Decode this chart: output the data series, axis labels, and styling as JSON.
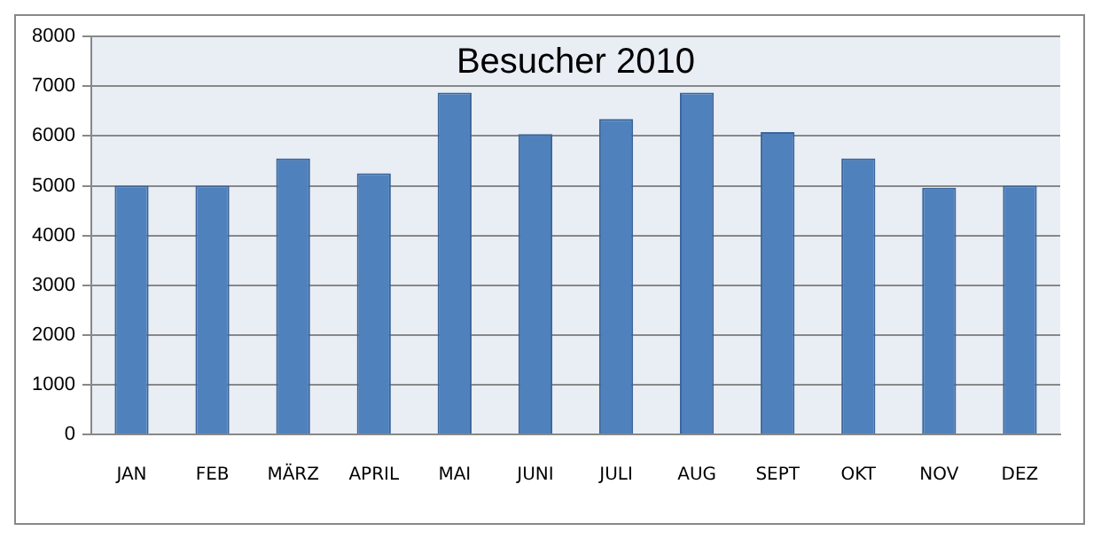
{
  "chart_data": {
    "type": "bar",
    "title": "Besucher 2010",
    "categories": [
      "JAN",
      "FEB",
      "MÄRZ",
      "APRIL",
      "MAI",
      "JUNI",
      "JULI",
      "AUG",
      "SEPT",
      "OKT",
      "NOV",
      "DEZ"
    ],
    "values": [
      5000,
      5000,
      5550,
      5250,
      6870,
      6040,
      6340,
      6870,
      6080,
      5550,
      4960,
      5000
    ],
    "color": "#4f81bd",
    "ylim": [
      0,
      8000
    ],
    "yticks": [
      0,
      1000,
      2000,
      3000,
      4000,
      5000,
      6000,
      7000,
      8000
    ],
    "grid": "y",
    "legend": false
  }
}
